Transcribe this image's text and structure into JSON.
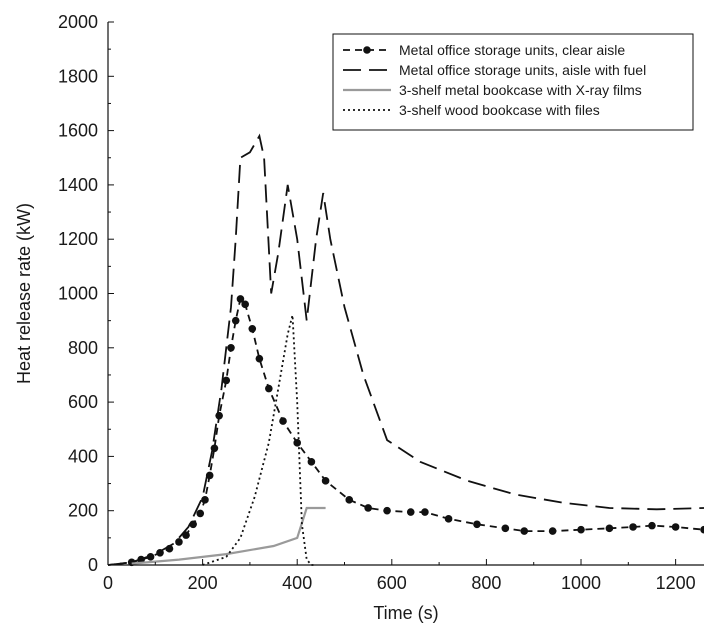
{
  "chart_data": {
    "type": "line",
    "xlabel": "Time (s)",
    "ylabel": "Heat release rate (kW)",
    "xlim": [
      0,
      1260
    ],
    "ylim": [
      0,
      2000
    ],
    "x_ticks": [
      "0",
      "200",
      "400",
      "600",
      "800",
      "1000",
      "1200"
    ],
    "y_ticks": [
      "0",
      "200",
      "400",
      "600",
      "800",
      "1000",
      "1200",
      "1400",
      "1600",
      "1800",
      "2000"
    ],
    "grid": false,
    "legend_position": "top-right",
    "series": [
      {
        "name": "Metal office storage units, clear aisle",
        "style": "dash-dot-markers",
        "color": "#111111",
        "x": [
          0,
          50,
          70,
          90,
          110,
          130,
          150,
          165,
          180,
          195,
          205,
          215,
          225,
          235,
          250,
          260,
          270,
          280,
          290,
          305,
          320,
          340,
          370,
          400,
          430,
          460,
          510,
          550,
          590,
          640,
          670,
          720,
          780,
          840,
          880,
          940,
          1000,
          1060,
          1110,
          1150,
          1200,
          1260
        ],
        "y": [
          0,
          10,
          20,
          30,
          45,
          60,
          85,
          110,
          150,
          190,
          240,
          330,
          430,
          550,
          680,
          800,
          900,
          980,
          960,
          870,
          760,
          650,
          530,
          450,
          380,
          310,
          240,
          210,
          200,
          195,
          195,
          170,
          150,
          135,
          125,
          125,
          130,
          135,
          140,
          145,
          140,
          130
        ]
      },
      {
        "name": "Metal office storage units, aisle with fuel",
        "style": "long-dash",
        "color": "#111111",
        "x": [
          0,
          50,
          100,
          140,
          170,
          200,
          220,
          240,
          260,
          270,
          280,
          300,
          320,
          330,
          345,
          360,
          380,
          400,
          420,
          440,
          455,
          470,
          500,
          540,
          590,
          660,
          760,
          860,
          960,
          1060,
          1160,
          1260
        ],
        "y": [
          0,
          10,
          40,
          80,
          140,
          250,
          420,
          650,
          950,
          1200,
          1500,
          1520,
          1580,
          1500,
          1000,
          1150,
          1400,
          1200,
          900,
          1200,
          1370,
          1200,
          950,
          700,
          460,
          380,
          310,
          260,
          230,
          210,
          205,
          210
        ]
      },
      {
        "name": "3-shelf metal bookcase with X-ray films",
        "style": "solid",
        "color": "#9a9a9a",
        "x": [
          50,
          150,
          250,
          350,
          400,
          420,
          440,
          460
        ],
        "y": [
          5,
          20,
          40,
          70,
          100,
          210,
          210,
          210
        ]
      },
      {
        "name": "3-shelf wood bookcase with files",
        "style": "dotted",
        "color": "#111111",
        "x": [
          200,
          250,
          280,
          310,
          340,
          360,
          380,
          390,
          400,
          410,
          420,
          430,
          440
        ],
        "y": [
          0,
          30,
          100,
          250,
          450,
          650,
          850,
          920,
          600,
          150,
          20,
          0,
          0
        ]
      }
    ]
  }
}
